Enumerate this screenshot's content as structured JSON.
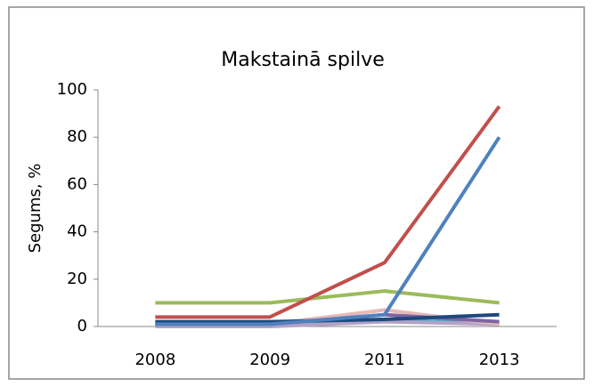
{
  "chart_data": {
    "type": "line",
    "title": "Makstainā spilve",
    "y_label": "Segums, %",
    "categories": [
      "2008",
      "2009",
      "2011",
      "2013"
    ],
    "series": [
      {
        "color": "#9bbb59",
        "values": [
          10,
          10,
          15,
          10
        ]
      },
      {
        "color": "#4bacc6",
        "values": [
          1,
          1,
          3,
          1
        ]
      },
      {
        "color": "#b3a2c7",
        "values": [
          0,
          0,
          2,
          1
        ]
      },
      {
        "color": "#e6b9b8",
        "values": [
          1,
          1,
          7,
          1
        ]
      },
      {
        "color": "#8064a2",
        "values": [
          1,
          1,
          5,
          2
        ]
      },
      {
        "color": "#1f497d",
        "values": [
          2,
          2,
          3,
          5
        ]
      },
      {
        "color": "#4f81bd",
        "values": [
          1,
          1,
          5,
          80
        ]
      },
      {
        "color": "#c0504d",
        "values": [
          4,
          4,
          27,
          93
        ]
      }
    ],
    "ylim": [
      0,
      100
    ],
    "yticks": [
      0,
      20,
      40,
      60,
      80,
      100
    ],
    "grid": false
  }
}
